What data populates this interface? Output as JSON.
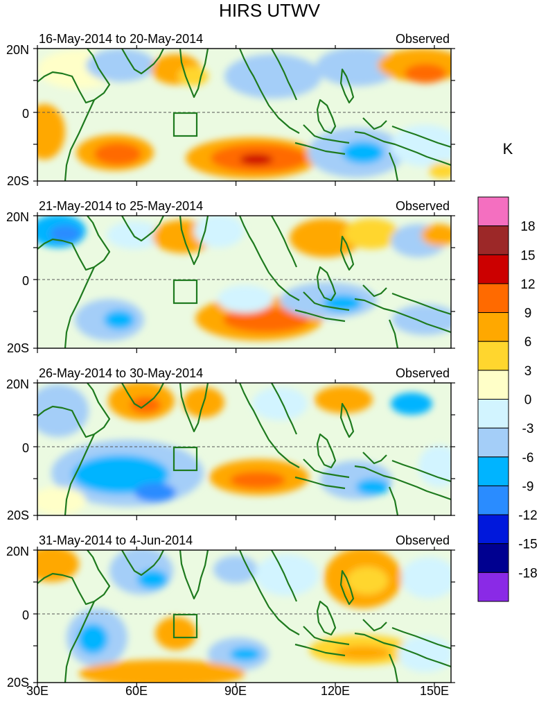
{
  "title": "HIRS UTWV",
  "units": "K",
  "panel_tag": "Observed",
  "x_tick_labels": [
    "30E",
    "60E",
    "90E",
    "120E",
    "150E"
  ],
  "lat_tick_labels": [
    "20N",
    "0",
    "20S"
  ],
  "colorbar": {
    "levels": [
      "18",
      "15",
      "12",
      "9",
      "6",
      "3",
      "0",
      "-3",
      "-6",
      "-9",
      "-12",
      "-15",
      "-18"
    ],
    "colors": [
      "#f46fc0",
      "#9c2828",
      "#cc0000",
      "#ff6a00",
      "#ffa800",
      "#ffd62e",
      "#ffffc8",
      "#d2f4ff",
      "#a4cef8",
      "#00b4ff",
      "#2a8cff",
      "#0018dc",
      "#000090",
      "#8a2ae6"
    ]
  },
  "panels": [
    {
      "date_range": "16-May-2014 to 20-May-2014"
    },
    {
      "date_range": "21-May-2014 to 25-May-2014"
    },
    {
      "date_range": "26-May-2014 to 30-May-2014"
    },
    {
      "date_range": "31-May-2014 to 4-Jun-2014"
    }
  ],
  "map_colors": {
    "land_outline": "#1e7a1e",
    "equator_line": "#555555"
  }
}
